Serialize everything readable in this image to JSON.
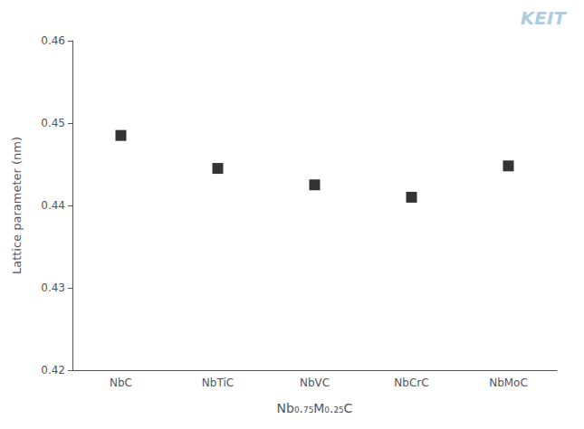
{
  "chart_data": {
    "type": "scatter",
    "categories": [
      "NbC",
      "NbTiC",
      "NbVC",
      "NbCrC",
      "NbMoC"
    ],
    "values": [
      0.4485,
      0.4445,
      0.4425,
      0.441,
      0.4448
    ],
    "xlabel": "Nb₀.₇₅M₀.₂₅C",
    "ylabel": "Lattice parameter (nm)",
    "ylim": [
      0.42,
      0.46
    ],
    "yticks": [
      0.42,
      0.43,
      0.44,
      0.45,
      0.46
    ],
    "color": "#000000",
    "marker": "square",
    "grid": false,
    "annotations": [
      "KEIT"
    ]
  }
}
